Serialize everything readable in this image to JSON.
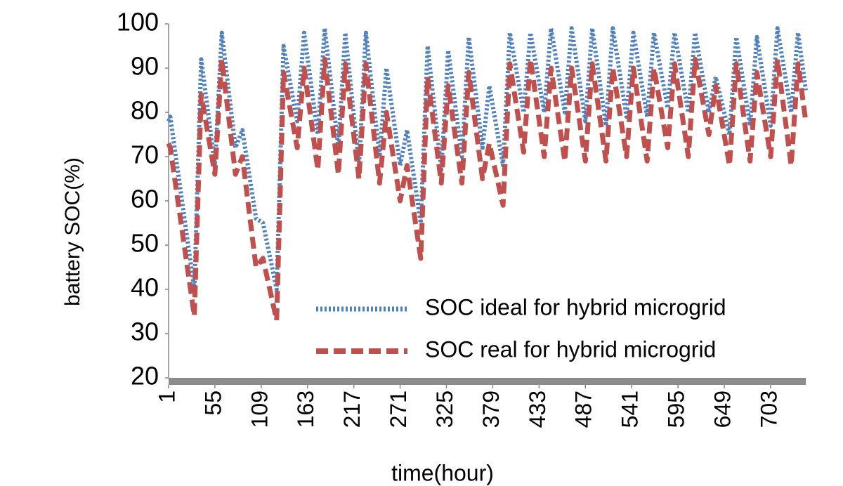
{
  "chart_data": {
    "type": "line",
    "y_label": "battery SOC(%)",
    "x_label": "time(hour)",
    "x": [
      1,
      3,
      31,
      39,
      55,
      63,
      79,
      87,
      103,
      111,
      127,
      135,
      151,
      159,
      175,
      183,
      199,
      207,
      223,
      231,
      247,
      255,
      271,
      279,
      295,
      303,
      319,
      327,
      343,
      351,
      367,
      375,
      391,
      399,
      415,
      423,
      439,
      447,
      463,
      471,
      487,
      495,
      511,
      519,
      535,
      543,
      559,
      567,
      583,
      591,
      607,
      615,
      631,
      639,
      655,
      663,
      679,
      687,
      703,
      711,
      727,
      735,
      744
    ],
    "series": [
      {
        "name": "SOC ideal for hybrid microgrid",
        "color": "#4f81bd",
        "style": "dotted",
        "values": [
          78,
          79,
          40,
          92,
          68,
          98,
          72,
          76,
          56,
          55,
          40,
          95,
          78,
          98,
          75,
          99,
          72,
          98,
          68,
          98,
          70,
          90,
          68,
          76,
          55,
          95,
          67,
          94,
          70,
          97,
          72,
          86,
          68,
          98,
          80,
          98,
          80,
          99,
          80,
          99,
          78,
          99,
          77,
          99,
          79,
          98,
          79,
          98,
          81,
          98,
          80,
          98,
          80,
          88,
          75,
          97,
          77,
          97,
          77,
          99,
          80,
          98,
          85
        ]
      },
      {
        "name": "SOC real for hybrid microgrid",
        "color": "#c0504d",
        "style": "dashed",
        "values": [
          73,
          72,
          34,
          84,
          66,
          92,
          66,
          70,
          45,
          47,
          33,
          89,
          72,
          90,
          67,
          92,
          66,
          91,
          65,
          91,
          64,
          80,
          60,
          68,
          47,
          88,
          64,
          86,
          64,
          89,
          65,
          73,
          59,
          91,
          71,
          92,
          70,
          90,
          69,
          90,
          69,
          91,
          69,
          90,
          70,
          90,
          69,
          90,
          72,
          91,
          70,
          92,
          75,
          86,
          68,
          91,
          69,
          89,
          70,
          92,
          68,
          91,
          78
        ]
      }
    ],
    "xlim": [
      1,
      744
    ],
    "xticks": [
      1,
      55,
      109,
      163,
      217,
      271,
      325,
      379,
      433,
      487,
      541,
      595,
      649,
      703
    ],
    "ylim": [
      20,
      100
    ],
    "yticks": [
      20,
      30,
      40,
      50,
      60,
      70,
      80,
      90,
      100
    ],
    "grid": false,
    "legend": "lower right"
  }
}
